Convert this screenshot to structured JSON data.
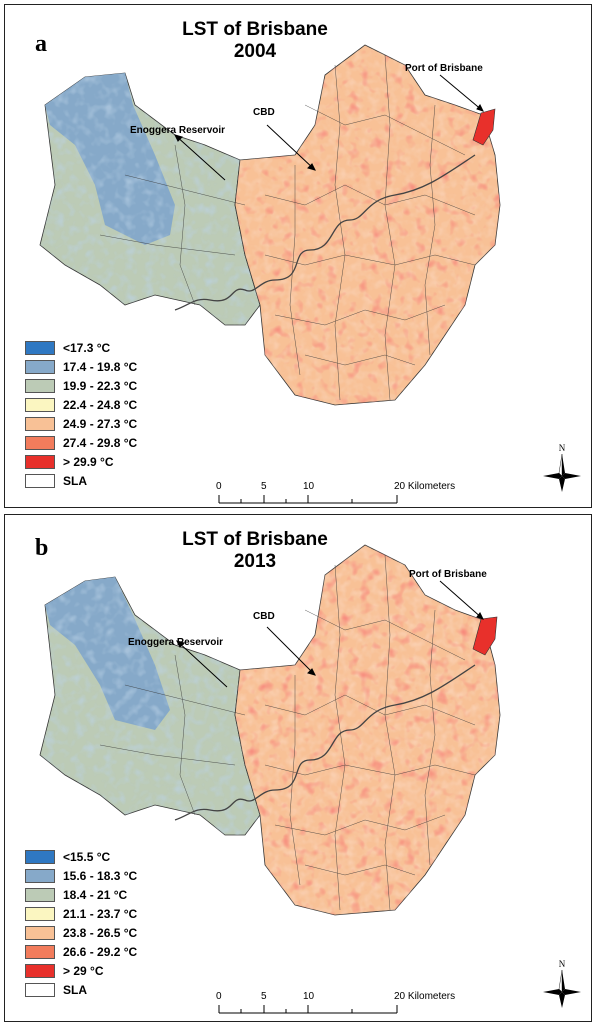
{
  "panels": [
    {
      "letter": "a",
      "title_line1": "LST of Brisbane",
      "title_line2": "2004",
      "annotations": {
        "port": "Port of Brisbane",
        "cbd": "CBD",
        "reservoir": "Enoggera Reservoir"
      },
      "legend": [
        {
          "label": "<17.3 °C",
          "color": "#2f78c2"
        },
        {
          "label": "17.4 - 19.8 °C",
          "color": "#86a9c9"
        },
        {
          "label": "19.9 - 22.3 °C",
          "color": "#bccbb6"
        },
        {
          "label": "22.4 - 24.8 °C",
          "color": "#fbf6c1"
        },
        {
          "label": "24.9 - 27.3 °C",
          "color": "#f8c196"
        },
        {
          "label": "27.4 - 29.8 °C",
          "color": "#f27c5c"
        },
        {
          "label": "> 29.9 °C",
          "color": "#e8302b"
        },
        {
          "label": "SLA",
          "color": "#ffffff"
        }
      ],
      "scale": {
        "ticks": [
          "0",
          "5",
          "10",
          "20 Kilometers"
        ]
      },
      "north": "N"
    },
    {
      "letter": "b",
      "title_line1": "LST of Brisbane",
      "title_line2": "2013",
      "annotations": {
        "port": "Port of Brisbane",
        "cbd": "CBD",
        "reservoir": "Enoggera Reservoir"
      },
      "legend": [
        {
          "label": "<15.5 °C",
          "color": "#2f78c2"
        },
        {
          "label": "15.6 - 18.3 °C",
          "color": "#86a9c9"
        },
        {
          "label": "18.4 - 21 °C",
          "color": "#bccbb6"
        },
        {
          "label": "21.1 - 23.7 °C",
          "color": "#fbf6c1"
        },
        {
          "label": "23.8 - 26.5 °C",
          "color": "#f8c196"
        },
        {
          "label": "26.6 - 29.2 °C",
          "color": "#f27c5c"
        },
        {
          "label": "> 29 °C",
          "color": "#e8302b"
        },
        {
          "label": "SLA",
          "color": "#ffffff"
        }
      ],
      "scale": {
        "ticks": [
          "0",
          "5",
          "10",
          "20 Kilometers"
        ]
      },
      "north": "N"
    }
  ]
}
